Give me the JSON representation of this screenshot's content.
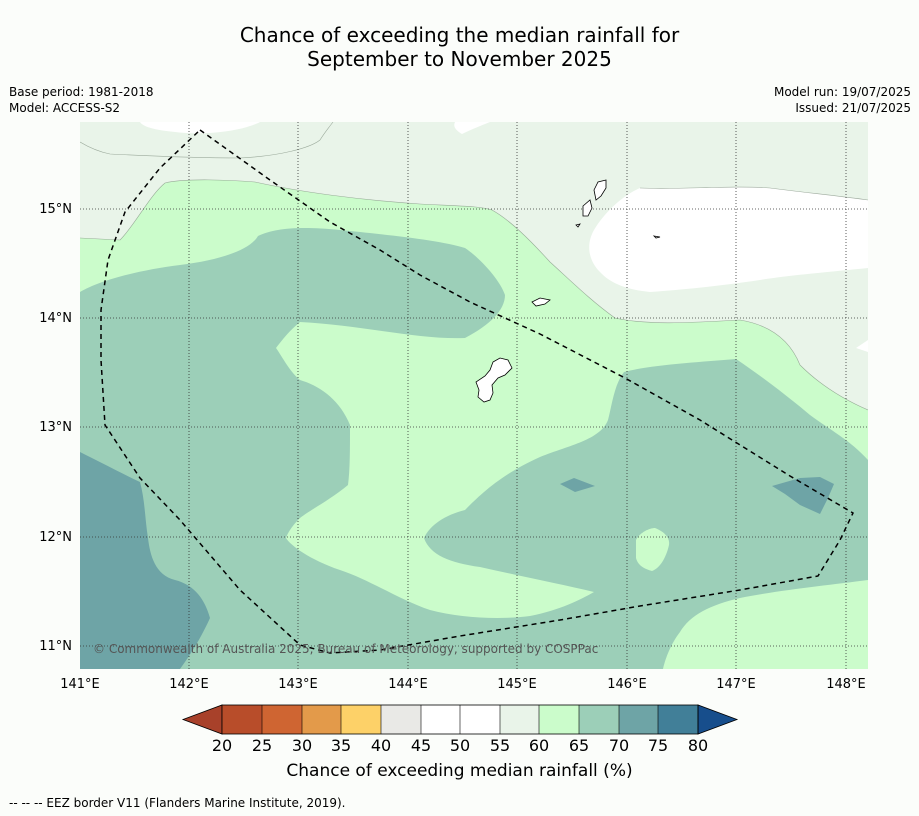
{
  "header": {
    "title_line1": "Chance of exceeding the median rainfall for",
    "title_line2": "September to November 2025",
    "base_period": "Base period: 1981-2018",
    "model": "Model: ACCESS-S2",
    "model_run": "Model run: 19/07/2025",
    "issued": "Issued: 21/07/2025"
  },
  "map": {
    "copyright": "© Commonwealth of Australia 2025, Bureau of Meteorology, supported by COSPPac",
    "lon_labels": [
      "141°E",
      "142°E",
      "143°E",
      "144°E",
      "145°E",
      "146°E",
      "147°E",
      "148°E"
    ],
    "lat_labels": [
      "15°N",
      "14°N",
      "13°N",
      "12°N",
      "11°N"
    ],
    "features": [
      "Guam",
      "Rota",
      "Tinian",
      "Saipan",
      "EEZ boundary"
    ]
  },
  "colorbar": {
    "ticks": [
      "20",
      "25",
      "30",
      "35",
      "40",
      "45",
      "50",
      "55",
      "60",
      "65",
      "70",
      "75",
      "80"
    ],
    "colors": [
      "#a8412a",
      "#b84d2a",
      "#cf6532",
      "#e39a4a",
      "#fdd168",
      "#e9e9e6",
      "#ffffff",
      "#ffffff",
      "#e9f4e9",
      "#cbfccb",
      "#9ccfb8",
      "#6ea4a6",
      "#417f98",
      "#174e8c"
    ],
    "label": "Chance of exceeding median rainfall (%)"
  },
  "footer": {
    "legend": "--  --  -- EEZ border V11 (Flanders Marine Institute, 2019)."
  }
}
